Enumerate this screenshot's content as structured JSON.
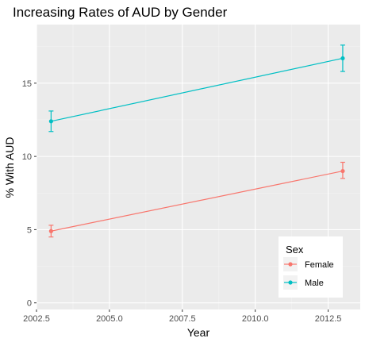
{
  "chart_data": {
    "type": "line",
    "title": "Increasing Rates of AUD by Gender",
    "xlabel": "Year",
    "ylabel": "% With AUD",
    "xlim": [
      2002.5,
      2013.6
    ],
    "ylim": [
      -0.45,
      19.0
    ],
    "x_ticks": [
      2002.5,
      2005.0,
      2007.5,
      2010.0,
      2012.5
    ],
    "x_tick_labels": [
      "2002.5",
      "2005.0",
      "2007.5",
      "2010.0",
      "2012.5"
    ],
    "y_ticks": [
      0,
      5,
      10,
      15
    ],
    "y_tick_labels": [
      "0",
      "5",
      "10",
      "15"
    ],
    "grid": true,
    "legend": {
      "title": "Sex",
      "position": "bottom-right"
    },
    "series": [
      {
        "name": "Female",
        "color": "#F8766D",
        "points": [
          {
            "x": 2003,
            "y": 4.9,
            "ymin": 4.5,
            "ymax": 5.3
          },
          {
            "x": 2013,
            "y": 9.0,
            "ymin": 8.5,
            "ymax": 9.6
          }
        ]
      },
      {
        "name": "Male",
        "color": "#00BFC4",
        "points": [
          {
            "x": 2003,
            "y": 12.4,
            "ymin": 11.7,
            "ymax": 13.1
          },
          {
            "x": 2013,
            "y": 16.7,
            "ymin": 15.8,
            "ymax": 17.6
          }
        ]
      }
    ]
  }
}
